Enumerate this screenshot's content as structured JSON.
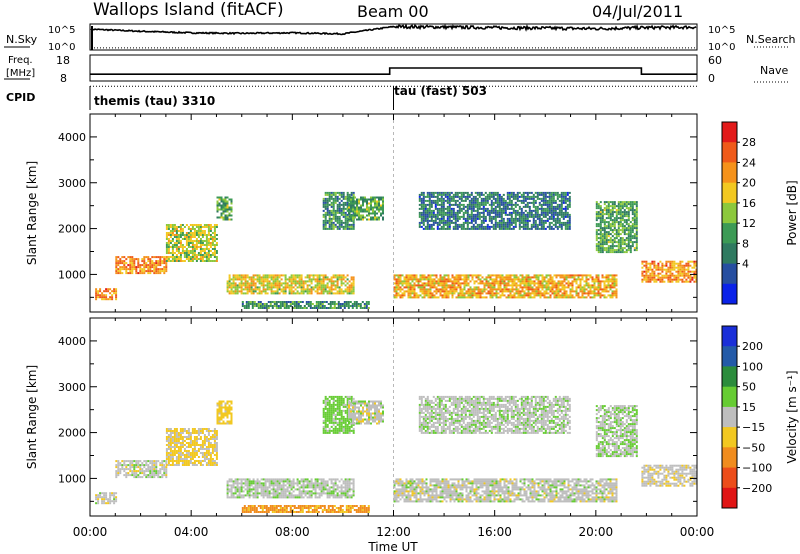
{
  "header": {
    "station": "Wallops Island (fitACF)",
    "beam": "Beam 00",
    "date": "04/Jul/2011"
  },
  "noise_panel": {
    "left_label": "N.Sky",
    "left_ticks": [
      "10^5",
      "10^0"
    ],
    "right_label": "N.Search",
    "right_ticks": [
      "10^5",
      "10^0"
    ]
  },
  "freq_panel": {
    "left_label_line1": "Freq.",
    "left_label_line2": "[MHz]",
    "left_ticks": [
      "18",
      "8"
    ],
    "right_label": "Nave",
    "right_ticks": [
      "60",
      "0"
    ]
  },
  "cpid": {
    "label": "CPID",
    "segments": [
      {
        "text": "themis (tau) 3310",
        "start_hour": 0
      },
      {
        "text": "tau (fast) 503",
        "start_hour": 12
      }
    ]
  },
  "x_axis": {
    "label": "Time UT",
    "ticks": [
      "00:00",
      "04:00",
      "08:00",
      "12:00",
      "16:00",
      "20:00",
      "00:00"
    ]
  },
  "power_panel": {
    "ylabel": "Slant Range [km]",
    "yticks": [
      "1000",
      "2000",
      "3000",
      "4000"
    ],
    "colorbar_label": "Power [dB]",
    "colorbar_ticks": [
      "28",
      "24",
      "20",
      "16",
      "12",
      "8",
      "4"
    ]
  },
  "velocity_panel": {
    "ylabel": "Slant Range [km]",
    "yticks": [
      "1000",
      "2000",
      "3000",
      "4000"
    ],
    "colorbar_label": "Velocity [m s⁻¹]",
    "colorbar_ticks": [
      "200",
      "100",
      "50",
      "15",
      "−15",
      "−50",
      "−100",
      "−200"
    ]
  },
  "colors": {
    "power_scale": [
      "#0a22e8",
      "#264ea0",
      "#2f7a60",
      "#3c9a55",
      "#8cc83c",
      "#f2c821",
      "#f5921b",
      "#ef5a1a",
      "#e21a1a"
    ],
    "velocity_scale": [
      "#1a2fd8",
      "#235aa8",
      "#2b8c3c",
      "#66cc33",
      "#bebebe",
      "#f2c821",
      "#f08c1e",
      "#ec4d1a",
      "#e01515"
    ]
  },
  "chart_data": [
    {
      "type": "line",
      "name": "noise",
      "x_hours": [
        0,
        2,
        4,
        6,
        8,
        10,
        12,
        14,
        16,
        18,
        20,
        22,
        24
      ],
      "series": [
        {
          "name": "N.Sky",
          "values": [
            4.0,
            3.6,
            3.3,
            3.2,
            3.3,
            3.1,
            4.5,
            4.4,
            4.3,
            4.2,
            4.1,
            4.3,
            4.4
          ]
        },
        {
          "name": "N.Search",
          "values": [
            0.4,
            0.4,
            0.4,
            0.4,
            0.4,
            0.4,
            0.4,
            0.4,
            0.4,
            0.4,
            0.4,
            0.4,
            0.4
          ]
        }
      ],
      "ylim": [
        0,
        5
      ]
    },
    {
      "type": "line",
      "name": "frequency",
      "x_hours": [
        0,
        11.85,
        11.85,
        21.8,
        21.8,
        24
      ],
      "series": [
        {
          "name": "Freq.",
          "values": [
            10.6,
            10.6,
            13.0,
            13.0,
            10.6,
            10.6
          ]
        },
        {
          "name": "Nave",
          "values": [
            6,
            6,
            6,
            6,
            6,
            6
          ]
        }
      ],
      "ylim": [
        8,
        18
      ]
    },
    {
      "type": "heatmap",
      "name": "power",
      "x_range_hours": [
        0,
        24
      ],
      "y_range_km": [
        180,
        4500
      ],
      "cmap_range_db": [
        0,
        30
      ],
      "echo_bands": [
        {
          "t0": 0.2,
          "t1": 1.0,
          "r0": 460,
          "r1": 700,
          "v": 22
        },
        {
          "t0": 1.0,
          "t1": 3.0,
          "r0": 1050,
          "r1": 1400,
          "v": 22
        },
        {
          "t0": 3.0,
          "t1": 5.0,
          "r0": 1300,
          "r1": 2100,
          "v": 16
        },
        {
          "t0": 5.0,
          "t1": 5.6,
          "r0": 2200,
          "r1": 2700,
          "v": 12
        },
        {
          "t0": 5.4,
          "t1": 10.4,
          "r0": 600,
          "r1": 1000,
          "v": 18
        },
        {
          "t0": 6.0,
          "t1": 11.0,
          "r0": 250,
          "r1": 420,
          "v": 10
        },
        {
          "t0": 9.2,
          "t1": 10.4,
          "r0": 2000,
          "r1": 2800,
          "v": 10
        },
        {
          "t0": 10.2,
          "t1": 11.6,
          "r0": 2200,
          "r1": 2700,
          "v": 12
        },
        {
          "t0": 12.0,
          "t1": 20.8,
          "r0": 500,
          "r1": 1000,
          "v": 20
        },
        {
          "t0": 13.0,
          "t1": 19.0,
          "r0": 2000,
          "r1": 2800,
          "v": 8
        },
        {
          "t0": 20.0,
          "t1": 21.6,
          "r0": 1500,
          "r1": 2600,
          "v": 12
        },
        {
          "t0": 21.8,
          "t1": 24.0,
          "r0": 850,
          "r1": 1300,
          "v": 22
        }
      ]
    },
    {
      "type": "heatmap",
      "name": "velocity",
      "x_range_hours": [
        0,
        24
      ],
      "y_range_km": [
        180,
        4500
      ],
      "cmap_range_ms": [
        -200,
        200
      ],
      "echo_bands": [
        {
          "t0": 0.2,
          "t1": 1.0,
          "r0": 460,
          "r1": 700,
          "v": 0
        },
        {
          "t0": 1.0,
          "t1": 3.0,
          "r0": 1050,
          "r1": 1400,
          "v": 0
        },
        {
          "t0": 3.0,
          "t1": 5.0,
          "r0": 1300,
          "r1": 2100,
          "v": -20
        },
        {
          "t0": 5.0,
          "t1": 5.6,
          "r0": 2200,
          "r1": 2700,
          "v": -30
        },
        {
          "t0": 5.4,
          "t1": 10.4,
          "r0": 600,
          "r1": 1000,
          "v": 5
        },
        {
          "t0": 6.0,
          "t1": 11.0,
          "r0": 250,
          "r1": 420,
          "v": -60
        },
        {
          "t0": 9.2,
          "t1": 10.4,
          "r0": 2000,
          "r1": 2800,
          "v": 30
        },
        {
          "t0": 10.2,
          "t1": 11.6,
          "r0": 2200,
          "r1": 2700,
          "v": 0
        },
        {
          "t0": 12.0,
          "t1": 20.8,
          "r0": 500,
          "r1": 1000,
          "v": 0
        },
        {
          "t0": 13.0,
          "t1": 19.0,
          "r0": 2000,
          "r1": 2800,
          "v": 5
        },
        {
          "t0": 20.0,
          "t1": 21.6,
          "r0": 1500,
          "r1": 2600,
          "v": 10
        },
        {
          "t0": 21.8,
          "t1": 24.0,
          "r0": 850,
          "r1": 1300,
          "v": -5
        }
      ]
    }
  ]
}
